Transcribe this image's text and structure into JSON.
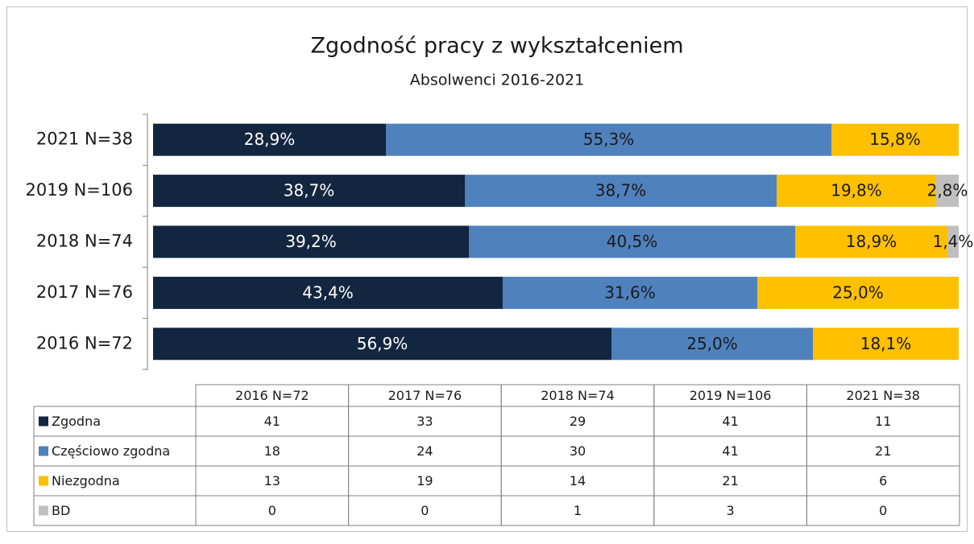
{
  "chart_data": {
    "type": "stacked-bar-horizontal",
    "title": "Zgodność pracy z wykształceniem",
    "subtitle": "Absolwenci 2016-2021",
    "categories": [
      "2016 N=72",
      "2017 N=76",
      "2018 N=74",
      "2019 N=106",
      "2021 N=38"
    ],
    "xlim": [
      0,
      100
    ],
    "series": [
      {
        "name": "Zgodna",
        "color": "#13263f",
        "label_color": "#ffffff",
        "values": [
          56.9,
          43.4,
          39.2,
          38.7,
          28.9
        ],
        "value_labels": [
          "56,9%",
          "43,4%",
          "39,2%",
          "38,7%",
          "28,9%"
        ],
        "counts": [
          41,
          33,
          29,
          41,
          11
        ]
      },
      {
        "name": "Częściowo zgodna",
        "color": "#4f81bd",
        "label_color": "#1a1a1a",
        "values": [
          25.0,
          31.6,
          40.5,
          38.7,
          55.3
        ],
        "value_labels": [
          "25,0%",
          "31,6%",
          "40,5%",
          "38,7%",
          "55,3%"
        ],
        "counts": [
          18,
          24,
          30,
          41,
          21
        ]
      },
      {
        "name": "Niezgodna",
        "color": "#ffc000",
        "label_color": "#1a1a1a",
        "values": [
          18.1,
          25.0,
          18.9,
          19.8,
          15.8
        ],
        "value_labels": [
          "18,1%",
          "25,0%",
          "18,9%",
          "19,8%",
          "15,8%"
        ],
        "counts": [
          13,
          19,
          14,
          21,
          6
        ]
      },
      {
        "name": "BD",
        "color": "#bfbfbf",
        "label_color": "#1a1a1a",
        "values": [
          0,
          0,
          1.4,
          2.8,
          0
        ],
        "value_labels": [
          null,
          null,
          "1,4%",
          "2,8%",
          null
        ],
        "counts": [
          0,
          0,
          1,
          3,
          0
        ]
      }
    ]
  }
}
